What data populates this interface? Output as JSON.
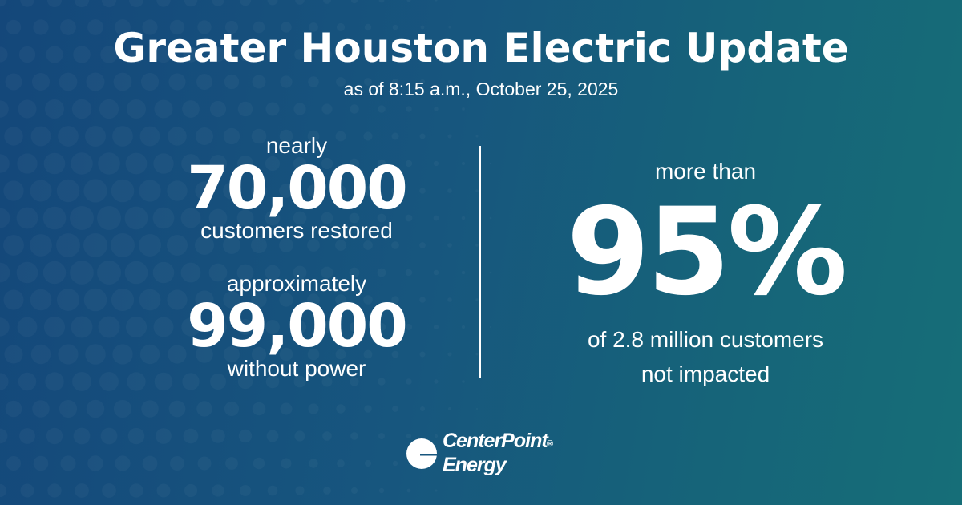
{
  "title": "Greater Houston Electric Update",
  "subtitle": "as of 8:15 a.m., October 25, 2025",
  "stats": [
    {
      "pre": "nearly",
      "value": "70,000",
      "post": "customers restored"
    },
    {
      "pre": "approximately",
      "value": "99,000",
      "post": "without power"
    }
  ],
  "highlight": {
    "pre": "more than",
    "value": "95%",
    "post_line1": "of 2.8 million customers",
    "post_line2": "not impacted"
  },
  "logo": {
    "line1": "CenterPoint",
    "line2": "Energy",
    "mark": "®"
  },
  "colors": {
    "background_left": "#14477a",
    "background_right": "#166e78",
    "text": "#ffffff"
  }
}
